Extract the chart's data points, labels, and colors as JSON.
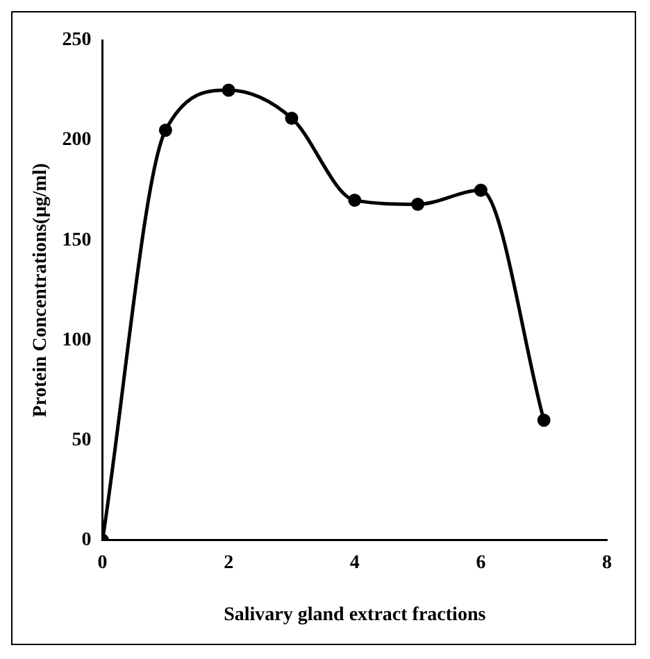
{
  "chart_data": {
    "type": "line",
    "xlabel": "Salivary gland extract fractions",
    "ylabel": "Protein Concentrations(µg/ml)",
    "x": [
      0,
      1,
      2,
      3,
      4,
      5,
      6,
      7
    ],
    "series": [
      {
        "color": "#000000",
        "values": [
          0,
          205,
          225,
          211,
          170,
          168,
          175,
          60
        ]
      }
    ],
    "xlim": [
      0,
      8
    ],
    "xticks": [
      0,
      2,
      4,
      6,
      8
    ],
    "ylim": [
      0,
      250
    ],
    "yticks": [
      0,
      50,
      100,
      150,
      200,
      250
    ],
    "grid": false,
    "legend": false,
    "marker": "circle",
    "line_style": "solid"
  }
}
